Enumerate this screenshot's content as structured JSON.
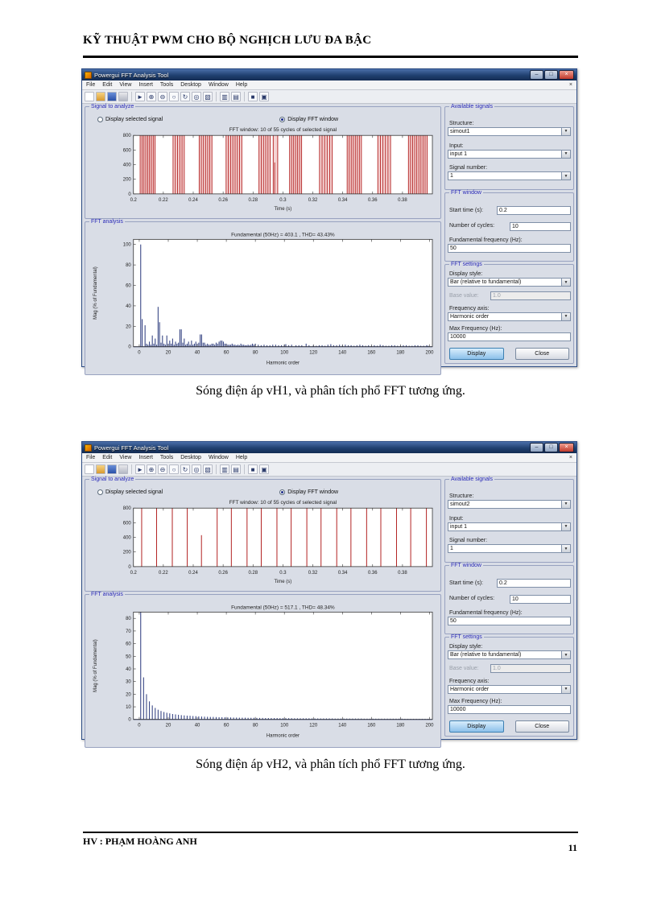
{
  "page": {
    "header_title": "KỸ THUẬT PWM CHO BỘ NGHỊCH LƯU ĐA BẬC",
    "captions": [
      "Sóng điện áp vH1, và phân tích phổ FFT tương ứng.",
      "Sóng điện áp vH2, và phân tích phổ FFT tương ứng."
    ],
    "footer_left": "HV : PHẠM HOÀNG ANH",
    "page_number": "11"
  },
  "window_chrome": {
    "title": "Powergui FFT Analysis Tool",
    "minimize_glyph": "–",
    "maximize_glyph": "□",
    "close_glyph": "×",
    "menubar_close_glyph": "×",
    "dropdown_arrow_glyph": "▼",
    "menus": [
      "File",
      "Edit",
      "View",
      "Insert",
      "Tools",
      "Desktop",
      "Window",
      "Help"
    ],
    "toolbar_icons": [
      {
        "name": "new-file",
        "glyph": ""
      },
      {
        "name": "open-file",
        "glyph": ""
      },
      {
        "name": "save",
        "glyph": ""
      },
      {
        "name": "print",
        "glyph": ""
      },
      {
        "name": "edit-plot",
        "glyph": "►"
      },
      {
        "name": "zoom-in",
        "glyph": "⊕"
      },
      {
        "name": "zoom-out",
        "glyph": "⊖"
      },
      {
        "name": "pan",
        "glyph": "○"
      },
      {
        "name": "rotate-3d",
        "glyph": "↻"
      },
      {
        "name": "data-cursor",
        "glyph": "◎"
      },
      {
        "name": "brush",
        "glyph": "▧"
      },
      {
        "name": "insert-colorbar",
        "glyph": "▥"
      },
      {
        "name": "insert-legend",
        "glyph": "▤"
      },
      {
        "name": "hide-plot-tools",
        "glyph": "■"
      },
      {
        "name": "dock-figure",
        "glyph": "▣"
      }
    ]
  },
  "panel": {
    "signal_group_label": "Signal to analyze",
    "radio_selected_signal": "Display selected signal",
    "radio_fft_window": "Display FFT window",
    "fft_group_label": "FFT analysis",
    "available_signals": {
      "label": "Available signals",
      "structure_label": "Structure:",
      "input_label": "Input:",
      "signal_number_label": "Signal number:"
    },
    "fft_window": {
      "label": "FFT window",
      "start_time_label": "Start time (s):",
      "cycles_label": "Number of cycles:",
      "fundamental_label": "Fundamental frequency (Hz):"
    },
    "fft_settings": {
      "label": "FFT settings",
      "display_style_label": "Display style:",
      "base_value_label": "Base value:",
      "frequency_axis_label": "Frequency axis:",
      "max_frequency_label": "Max Frequency (Hz):",
      "display_button": "Display",
      "close_button": "Close"
    }
  },
  "windows": [
    {
      "structure": "simout1",
      "input": "input 1",
      "signal_number": "1",
      "start_time": "0.2",
      "cycles": "10",
      "fundamental_frequency": "50",
      "display_style": "Bar (relative to fundamental)",
      "base_value": "1.0",
      "frequency_axis": "Harmonic order",
      "max_frequency": "10000"
    },
    {
      "structure": "simout2",
      "input": "input 1",
      "signal_number": "1",
      "start_time": "0.2",
      "cycles": "10",
      "fundamental_frequency": "50",
      "display_style": "Bar (relative to fundamental)",
      "base_value": "1.0",
      "frequency_axis": "Harmonic order",
      "max_frequency": "10000"
    }
  ],
  "chart_data": [
    {
      "type": "line",
      "name": "vh1-signal-fft-window",
      "title": "FFT window: 10 of 55 cycles of selected signal",
      "xlabel": "Time (s)",
      "ylabel": "",
      "xlim": [
        0.2,
        0.4
      ],
      "ylim": [
        0,
        800
      ],
      "xticks": [
        0.2,
        0.22,
        0.24,
        0.26,
        0.28,
        0.3,
        0.32,
        0.34,
        0.36,
        0.38
      ],
      "xtick_labels": [
        "0.2",
        "0.22",
        "0.24",
        "0.26",
        "0.28",
        "0.3",
        "0.32",
        "0.34",
        "0.36",
        "0.38"
      ],
      "yticks": [
        0,
        200,
        400,
        600,
        800
      ],
      "signal_color": "#b22222",
      "pulse_clusters": [
        [
          0.2045,
          0.2145,
          9
        ],
        [
          0.2265,
          0.234,
          6
        ],
        [
          0.244,
          0.2525,
          7
        ],
        [
          0.262,
          0.2725,
          8
        ],
        [
          0.284,
          0.2915,
          6
        ],
        [
          0.2935,
          0.2965,
          2
        ],
        [
          0.3045,
          0.3125,
          7
        ],
        [
          0.3245,
          0.333,
          6
        ],
        [
          0.343,
          0.3525,
          8
        ],
        [
          0.3635,
          0.372,
          6
        ],
        [
          0.384,
          0.3965,
          10
        ]
      ],
      "partial_pulses": [
        [
          0.2945,
          430
        ]
      ]
    },
    {
      "type": "bar",
      "name": "vh1-fft-spectrum",
      "title": "Fundamental (50Hz) = 403.1 , THD= 43.43%",
      "xlabel": "Harmonic order",
      "ylabel": "Mag (% of Fundamental)",
      "xlim": [
        -4,
        202
      ],
      "ylim": [
        0,
        105
      ],
      "xticks": [
        0,
        20,
        40,
        60,
        80,
        100,
        120,
        140,
        160,
        180,
        200
      ],
      "yticks": [
        0,
        20,
        40,
        60,
        80,
        100
      ],
      "bar_color": "#3a4886",
      "points": [
        [
          1,
          100
        ],
        [
          2,
          27
        ],
        [
          4,
          21
        ],
        [
          5,
          3
        ],
        [
          6,
          2
        ],
        [
          7,
          5
        ],
        [
          8,
          2
        ],
        [
          9,
          11
        ],
        [
          10,
          3
        ],
        [
          11,
          8
        ],
        [
          12,
          2
        ],
        [
          13,
          39
        ],
        [
          14,
          24
        ],
        [
          15,
          4
        ],
        [
          16,
          11
        ],
        [
          17,
          3
        ],
        [
          18,
          2
        ],
        [
          19,
          11
        ],
        [
          20,
          3
        ],
        [
          21,
          6
        ],
        [
          22,
          3
        ],
        [
          23,
          8
        ],
        [
          24,
          2
        ],
        [
          25,
          5
        ],
        [
          26,
          3
        ],
        [
          27,
          4
        ],
        [
          28,
          17
        ],
        [
          29,
          17
        ],
        [
          30,
          4
        ],
        [
          31,
          8
        ],
        [
          32,
          2
        ],
        [
          33,
          3
        ],
        [
          34,
          5
        ],
        [
          35,
          2
        ],
        [
          36,
          6
        ],
        [
          37,
          2
        ],
        [
          38,
          3
        ],
        [
          39,
          5
        ],
        [
          40,
          3
        ],
        [
          41,
          4
        ],
        [
          42,
          12
        ],
        [
          43,
          12
        ],
        [
          44,
          4
        ],
        [
          45,
          4
        ],
        [
          46,
          2
        ],
        [
          47,
          3
        ],
        [
          48,
          2
        ],
        [
          49,
          2
        ],
        [
          50,
          3
        ],
        [
          51,
          3
        ],
        [
          52,
          2
        ],
        [
          53,
          4
        ],
        [
          54,
          3
        ],
        [
          55,
          5
        ],
        [
          56,
          6
        ],
        [
          57,
          6
        ],
        [
          58,
          5
        ],
        [
          59,
          3
        ],
        [
          60,
          3
        ],
        [
          61,
          2
        ],
        [
          62,
          2
        ],
        [
          63,
          2
        ],
        [
          64,
          3
        ],
        [
          65,
          2
        ],
        [
          66,
          2
        ],
        [
          67,
          1.5
        ],
        [
          68,
          2
        ],
        [
          69,
          1.5
        ],
        [
          70,
          3
        ],
        [
          71,
          2
        ],
        [
          72,
          2
        ],
        [
          73,
          1.5
        ],
        [
          74,
          1.5
        ],
        [
          75,
          2
        ],
        [
          76,
          1.5
        ],
        [
          77,
          2
        ],
        [
          78,
          3
        ],
        [
          79,
          2
        ],
        [
          80,
          3
        ],
        [
          82,
          2
        ],
        [
          84,
          1.5
        ],
        [
          86,
          2
        ],
        [
          88,
          1.5
        ],
        [
          90,
          1.5
        ],
        [
          92,
          2
        ],
        [
          94,
          2
        ],
        [
          96,
          1.5
        ],
        [
          98,
          1.5
        ],
        [
          100,
          2
        ],
        [
          101,
          2.5
        ],
        [
          103,
          1.5
        ],
        [
          105,
          2
        ],
        [
          108,
          1.5
        ],
        [
          110,
          1.5
        ],
        [
          112,
          1.5
        ],
        [
          115,
          3
        ],
        [
          117,
          1.5
        ],
        [
          120,
          1.5
        ],
        [
          122,
          1
        ],
        [
          124,
          1.5
        ],
        [
          126,
          1.5
        ],
        [
          128,
          1
        ],
        [
          130,
          2
        ],
        [
          132,
          2.5
        ],
        [
          134,
          1.5
        ],
        [
          136,
          1.5
        ],
        [
          138,
          2
        ],
        [
          140,
          1.5
        ],
        [
          142,
          2
        ],
        [
          144,
          1.5
        ],
        [
          146,
          1.5
        ],
        [
          148,
          1
        ],
        [
          150,
          1.5
        ],
        [
          152,
          2
        ],
        [
          154,
          1.5
        ],
        [
          156,
          1
        ],
        [
          158,
          1.5
        ],
        [
          160,
          1
        ],
        [
          162,
          1.5
        ],
        [
          164,
          1
        ],
        [
          166,
          2
        ],
        [
          168,
          1.5
        ],
        [
          170,
          1
        ],
        [
          172,
          1
        ],
        [
          174,
          1.5
        ],
        [
          176,
          1.5
        ],
        [
          178,
          1
        ],
        [
          180,
          1
        ],
        [
          182,
          1.5
        ],
        [
          184,
          1.5
        ],
        [
          186,
          1
        ],
        [
          188,
          1
        ],
        [
          190,
          1.5
        ],
        [
          192,
          1.5
        ],
        [
          194,
          1
        ],
        [
          196,
          1
        ],
        [
          198,
          1.5
        ],
        [
          199,
          1
        ]
      ]
    },
    {
      "type": "line",
      "name": "vh2-signal-fft-window",
      "title": "FFT window: 10 of 55 cycles of selected signal",
      "xlabel": "Time (s)",
      "ylabel": "",
      "xlim": [
        0.2,
        0.4
      ],
      "ylim": [
        0,
        800
      ],
      "xticks": [
        0.2,
        0.22,
        0.24,
        0.26,
        0.28,
        0.3,
        0.32,
        0.34,
        0.36,
        0.38
      ],
      "xtick_labels": [
        "0.2",
        "0.22",
        "0.24",
        "0.26",
        "0.28",
        "0.3",
        "0.32",
        "0.34",
        "0.36",
        "0.38"
      ],
      "yticks": [
        0,
        200,
        400,
        600,
        800
      ],
      "signal_color": "#b22222",
      "pulses": [
        [
          0.2055,
          800
        ],
        [
          0.2155,
          800
        ],
        [
          0.226,
          800
        ],
        [
          0.236,
          800
        ],
        [
          0.2455,
          430
        ],
        [
          0.256,
          800
        ],
        [
          0.2655,
          800
        ],
        [
          0.276,
          800
        ],
        [
          0.2855,
          800
        ],
        [
          0.296,
          800
        ],
        [
          0.3055,
          800
        ],
        [
          0.316,
          800
        ],
        [
          0.3255,
          800
        ],
        [
          0.336,
          800
        ],
        [
          0.3455,
          800
        ],
        [
          0.356,
          800
        ],
        [
          0.3655,
          800
        ],
        [
          0.376,
          800
        ],
        [
          0.3855,
          800
        ],
        [
          0.396,
          800
        ]
      ]
    },
    {
      "type": "bar",
      "name": "vh2-fft-spectrum",
      "title": "Fundamental (50Hz) = 517.1 , THD= 48.34%",
      "xlabel": "Harmonic order",
      "ylabel": "Mag (% of Fundamental)",
      "xlim": [
        -4,
        202
      ],
      "ylim": [
        0,
        85
      ],
      "xticks": [
        0,
        20,
        40,
        60,
        80,
        100,
        120,
        140,
        160,
        180,
        200
      ],
      "yticks": [
        0,
        10,
        20,
        30,
        40,
        50,
        60,
        70,
        80
      ],
      "bar_color": "#3a4886",
      "points": [
        [
          1,
          100
        ],
        [
          3,
          33.3
        ],
        [
          5,
          20
        ],
        [
          7,
          14.3
        ],
        [
          9,
          11.1
        ],
        [
          11,
          9.1
        ],
        [
          13,
          7.7
        ],
        [
          15,
          6.7
        ],
        [
          17,
          5.9
        ],
        [
          19,
          5.3
        ],
        [
          21,
          4.8
        ],
        [
          23,
          4.3
        ],
        [
          25,
          4
        ],
        [
          27,
          3.7
        ],
        [
          29,
          3.4
        ],
        [
          31,
          3.2
        ],
        [
          33,
          3
        ],
        [
          35,
          2.9
        ],
        [
          37,
          2.7
        ],
        [
          39,
          2.6
        ],
        [
          41,
          2.4
        ],
        [
          43,
          2.3
        ],
        [
          45,
          2.2
        ],
        [
          47,
          2.1
        ],
        [
          49,
          2
        ],
        [
          51,
          2
        ],
        [
          53,
          1.9
        ],
        [
          55,
          1.8
        ],
        [
          57,
          1.8
        ],
        [
          59,
          1.7
        ],
        [
          61,
          1.6
        ],
        [
          63,
          1.6
        ],
        [
          65,
          1.5
        ],
        [
          67,
          1.5
        ],
        [
          69,
          1.4
        ],
        [
          71,
          1.4
        ],
        [
          73,
          1.4
        ],
        [
          75,
          1.3
        ],
        [
          77,
          1.3
        ],
        [
          79,
          1.3
        ],
        [
          81,
          1.2
        ],
        [
          83,
          1.2
        ],
        [
          85,
          1.2
        ],
        [
          87,
          1.1
        ],
        [
          89,
          1.1
        ],
        [
          91,
          1.1
        ],
        [
          93,
          1.1
        ],
        [
          95,
          1.1
        ],
        [
          97,
          1
        ],
        [
          99,
          1
        ],
        [
          101,
          1
        ],
        [
          103,
          1
        ],
        [
          105,
          1
        ],
        [
          107,
          0.9
        ],
        [
          109,
          0.9
        ],
        [
          111,
          0.9
        ],
        [
          113,
          0.9
        ],
        [
          115,
          0.9
        ],
        [
          117,
          0.9
        ],
        [
          119,
          0.8
        ],
        [
          121,
          0.8
        ],
        [
          123,
          0.8
        ],
        [
          125,
          0.8
        ],
        [
          127,
          0.8
        ],
        [
          129,
          0.8
        ],
        [
          131,
          0.8
        ],
        [
          133,
          0.8
        ],
        [
          135,
          0.7
        ],
        [
          137,
          0.7
        ],
        [
          139,
          0.7
        ],
        [
          141,
          0.7
        ],
        [
          143,
          0.7
        ],
        [
          145,
          0.7
        ],
        [
          147,
          0.7
        ],
        [
          149,
          0.7
        ],
        [
          151,
          0.7
        ],
        [
          153,
          0.7
        ],
        [
          155,
          0.6
        ],
        [
          157,
          0.6
        ],
        [
          159,
          0.6
        ],
        [
          161,
          0.6
        ],
        [
          163,
          0.6
        ],
        [
          165,
          0.6
        ],
        [
          167,
          0.6
        ],
        [
          169,
          0.6
        ],
        [
          171,
          0.6
        ],
        [
          173,
          0.6
        ],
        [
          175,
          0.6
        ],
        [
          177,
          0.6
        ],
        [
          179,
          0.6
        ],
        [
          181,
          0.6
        ],
        [
          183,
          0.5
        ],
        [
          185,
          0.5
        ],
        [
          187,
          0.5
        ],
        [
          189,
          0.5
        ],
        [
          191,
          0.5
        ],
        [
          193,
          0.5
        ],
        [
          195,
          0.5
        ],
        [
          197,
          0.5
        ],
        [
          199,
          0.5
        ]
      ]
    }
  ]
}
